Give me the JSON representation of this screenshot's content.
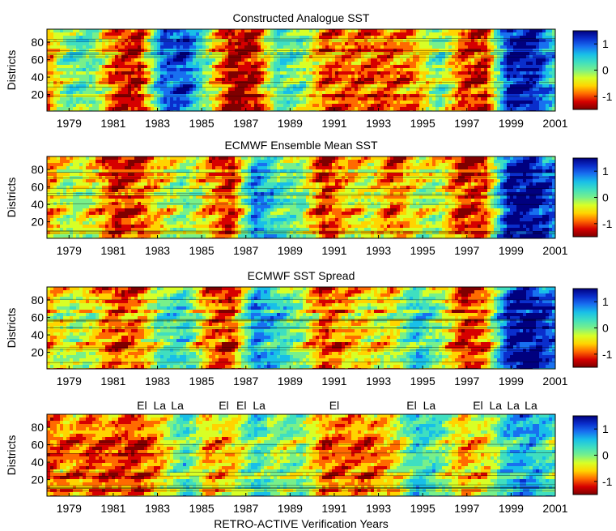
{
  "figure": {
    "xlabel": "RETRO-ACTIVE Verification Years",
    "ylabel": "Districts"
  },
  "colormap": [
    "#7f0000",
    "#d60000",
    "#ff6a00",
    "#ffd400",
    "#d8ff26",
    "#78f08a",
    "#3fdfc0",
    "#18bfe8",
    "#1870f0",
    "#0a2ecc",
    "#00007f"
  ],
  "chart_data": [
    {
      "type": "heatmap",
      "title": "Constructed Analogue SST",
      "ylabel": "Districts",
      "xlim": [
        1978,
        2001
      ],
      "ylim": [
        1,
        95
      ],
      "x_ticks": [
        "1979",
        "1981",
        "1983",
        "1985",
        "1987",
        "1989",
        "1991",
        "1993",
        "1995",
        "1997",
        "1999",
        "2001"
      ],
      "y_ticks": [
        "20",
        "40",
        "60",
        "80"
      ],
      "colorbar_ticks": [
        "1",
        "0",
        "-1"
      ],
      "colorbar_range": [
        -1.5,
        1.5
      ],
      "annotations": [],
      "x": [
        1978.5,
        1979.5,
        1980.5,
        1981.5,
        1982.5,
        1983.5,
        1984.5,
        1985.5,
        1986.5,
        1987.5,
        1988.5,
        1989.5,
        1990.5,
        1991.5,
        1992.5,
        1993.5,
        1994.5,
        1995.5,
        1996.5,
        1997.5,
        1998.5,
        1999.5,
        2000.5
      ],
      "year_means": [
        -0.8,
        0.1,
        0.0,
        -1.0,
        -1.2,
        0.8,
        1.0,
        -0.2,
        -1.3,
        -1.2,
        0.2,
        0.0,
        -0.9,
        -0.9,
        -0.9,
        -0.9,
        -0.7,
        0.1,
        -1.0,
        -1.1,
        1.2,
        1.2,
        0.3
      ]
    },
    {
      "type": "heatmap",
      "title": "ECMWF Ensemble Mean SST",
      "ylabel": "Districts",
      "xlim": [
        1978,
        2001
      ],
      "ylim": [
        1,
        95
      ],
      "x_ticks": [
        "1979",
        "1981",
        "1983",
        "1985",
        "1987",
        "1989",
        "1991",
        "1993",
        "1995",
        "1997",
        "1999",
        "2001"
      ],
      "y_ticks": [
        "20",
        "40",
        "60",
        "80"
      ],
      "colorbar_ticks": [
        "1",
        "0",
        "-1"
      ],
      "colorbar_range": [
        -1.5,
        1.5
      ],
      "annotations": [],
      "x": [
        1978.5,
        1979.5,
        1980.5,
        1981.5,
        1982.5,
        1983.5,
        1984.5,
        1985.5,
        1986.5,
        1987.5,
        1988.5,
        1989.5,
        1990.5,
        1991.5,
        1992.5,
        1993.5,
        1994.5,
        1995.5,
        1996.5,
        1997.5,
        1998.5,
        1999.5,
        2000.5
      ],
      "year_means": [
        -0.7,
        -0.1,
        -0.4,
        -1.1,
        -0.9,
        -0.4,
        0.0,
        -0.6,
        -1.1,
        0.8,
        0.2,
        0.0,
        -1.1,
        -0.5,
        -0.3,
        -0.9,
        -0.3,
        -0.2,
        -1.1,
        -0.9,
        1.3,
        1.3,
        0.8
      ]
    },
    {
      "type": "heatmap",
      "title": "ECMWF SST Spread",
      "ylabel": "Districts",
      "xlim": [
        1978,
        2001
      ],
      "ylim": [
        1,
        95
      ],
      "x_ticks": [
        "1979",
        "1981",
        "1983",
        "1985",
        "1987",
        "1989",
        "1991",
        "1993",
        "1995",
        "1997",
        "1999",
        "2001"
      ],
      "y_ticks": [
        "20",
        "40",
        "60",
        "80"
      ],
      "colorbar_ticks": [
        "1",
        "0",
        "-1"
      ],
      "colorbar_range": [
        -1.5,
        1.5
      ],
      "annotations": [],
      "x": [
        1978.5,
        1979.5,
        1980.5,
        1981.5,
        1982.5,
        1983.5,
        1984.5,
        1985.5,
        1986.5,
        1987.5,
        1988.5,
        1989.5,
        1990.5,
        1991.5,
        1992.5,
        1993.5,
        1994.5,
        1995.5,
        1996.5,
        1997.5,
        1998.5,
        1999.5,
        2000.5
      ],
      "year_means": [
        -0.6,
        -0.2,
        -0.4,
        -1.0,
        -0.8,
        0.1,
        0.3,
        -0.8,
        -1.1,
        0.7,
        0.3,
        -0.1,
        -1.0,
        -0.6,
        -0.4,
        -0.4,
        0.4,
        -0.1,
        -1.1,
        -0.8,
        1.2,
        1.3,
        0.8
      ]
    },
    {
      "type": "heatmap",
      "title": "",
      "ylabel": "Districts",
      "xlabel": "RETRO-ACTIVE Verification Years",
      "xlim": [
        1978,
        2001
      ],
      "ylim": [
        1,
        95
      ],
      "x_ticks": [
        "1979",
        "1981",
        "1983",
        "1985",
        "1987",
        "1989",
        "1991",
        "1993",
        "1995",
        "1997",
        "1999",
        "2001"
      ],
      "y_ticks": [
        "20",
        "40",
        "60",
        "80"
      ],
      "colorbar_ticks": [
        "1",
        "0",
        "-1"
      ],
      "colorbar_range": [
        -1.5,
        1.5
      ],
      "annotations": [
        {
          "text": "El",
          "x": 1982.3
        },
        {
          "text": "La",
          "x": 1983.1
        },
        {
          "text": "La",
          "x": 1983.9
        },
        {
          "text": "El",
          "x": 1986.0
        },
        {
          "text": "El",
          "x": 1986.8
        },
        {
          "text": "La",
          "x": 1987.6
        },
        {
          "text": "El",
          "x": 1991.0
        },
        {
          "text": "El",
          "x": 1994.5
        },
        {
          "text": "La",
          "x": 1995.3
        },
        {
          "text": "El",
          "x": 1997.5
        },
        {
          "text": "La",
          "x": 1998.3
        },
        {
          "text": "La",
          "x": 1999.1
        },
        {
          "text": "La",
          "x": 1999.9
        }
      ],
      "x": [
        1978.5,
        1979.5,
        1980.5,
        1981.5,
        1982.5,
        1983.5,
        1984.5,
        1985.5,
        1986.5,
        1987.5,
        1988.5,
        1989.5,
        1990.5,
        1991.5,
        1992.5,
        1993.5,
        1994.5,
        1995.5,
        1996.5,
        1997.5,
        1998.5,
        1999.5,
        2000.5
      ],
      "year_means": [
        -0.9,
        -0.7,
        -0.9,
        -0.9,
        -1.0,
        -0.5,
        0.3,
        -0.6,
        -0.5,
        0.3,
        -0.1,
        0.0,
        -0.8,
        -0.8,
        -0.8,
        -0.5,
        0.4,
        0.1,
        -0.6,
        -0.4,
        0.5,
        0.6,
        0.1
      ]
    }
  ]
}
